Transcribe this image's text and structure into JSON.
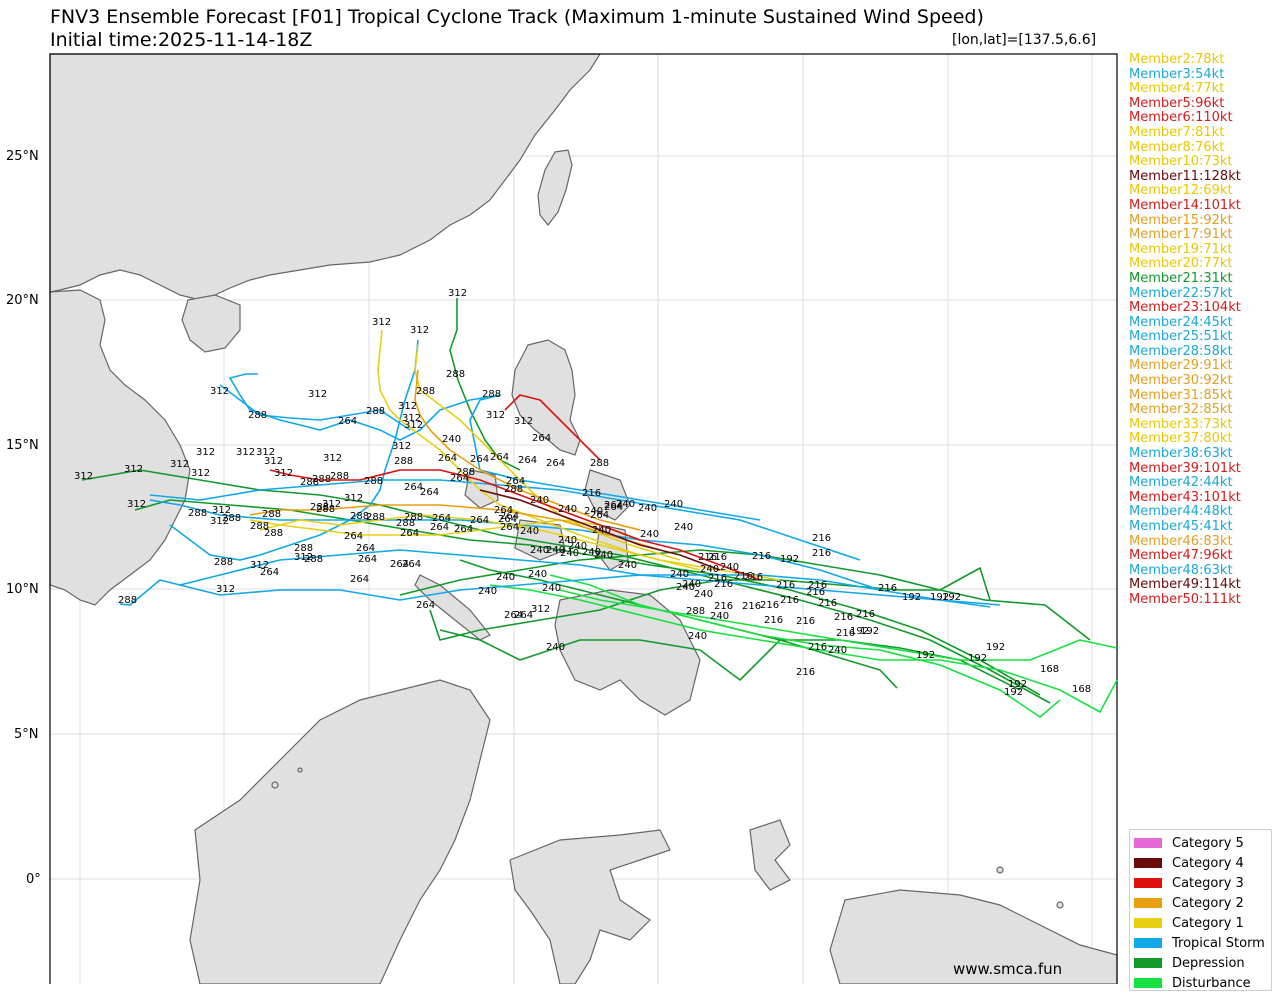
{
  "title": "FNV3 Ensemble Forecast [F01] Tropical Cyclone Track (Maximum 1-minute Sustained Wind Speed)",
  "initial_time": "Initial time:2025-11-14-18Z",
  "coord_label": "[lon,lat]=[137.5,6.6]",
  "credit": "www.smca.fun",
  "lat_labels": [
    "25°N",
    "20°N",
    "15°N",
    "10°N",
    "5°N",
    "0°"
  ],
  "members": [
    {
      "label": "Member2:78kt",
      "color": "#e8c800"
    },
    {
      "label": "Member3:54kt",
      "color": "#1aa8d8"
    },
    {
      "label": "Member4:77kt",
      "color": "#e8c800"
    },
    {
      "label": "Member5:96kt",
      "color": "#d41c1c"
    },
    {
      "label": "Member6:110kt",
      "color": "#d41c1c"
    },
    {
      "label": "Member7:81kt",
      "color": "#e8c800"
    },
    {
      "label": "Member8:76kt",
      "color": "#e8c800"
    },
    {
      "label": "Member10:73kt",
      "color": "#e8c800"
    },
    {
      "label": "Member11:128kt",
      "color": "#6b0a0a"
    },
    {
      "label": "Member12:69kt",
      "color": "#e8c800"
    },
    {
      "label": "Member14:101kt",
      "color": "#d41c1c"
    },
    {
      "label": "Member15:92kt",
      "color": "#e0a020"
    },
    {
      "label": "Member17:91kt",
      "color": "#e0a020"
    },
    {
      "label": "Member19:71kt",
      "color": "#e8c800"
    },
    {
      "label": "Member20:77kt",
      "color": "#e8c800"
    },
    {
      "label": "Member21:31kt",
      "color": "#119a2a"
    },
    {
      "label": "Member22:57kt",
      "color": "#1aa8d8"
    },
    {
      "label": "Member23:104kt",
      "color": "#d41c1c"
    },
    {
      "label": "Member24:45kt",
      "color": "#1aa8d8"
    },
    {
      "label": "Member25:51kt",
      "color": "#1aa8d8"
    },
    {
      "label": "Member28:58kt",
      "color": "#1aa8d8"
    },
    {
      "label": "Member29:91kt",
      "color": "#e0a020"
    },
    {
      "label": "Member30:92kt",
      "color": "#e0a020"
    },
    {
      "label": "Member31:85kt",
      "color": "#e0a020"
    },
    {
      "label": "Member32:85kt",
      "color": "#e0a020"
    },
    {
      "label": "Member33:73kt",
      "color": "#e8c800"
    },
    {
      "label": "Member37:80kt",
      "color": "#e8c800"
    },
    {
      "label": "Member38:63kt",
      "color": "#1aa8d8"
    },
    {
      "label": "Member39:101kt",
      "color": "#d41c1c"
    },
    {
      "label": "Member42:44kt",
      "color": "#1aa8d8"
    },
    {
      "label": "Member43:101kt",
      "color": "#d41c1c"
    },
    {
      "label": "Member44:48kt",
      "color": "#1aa8d8"
    },
    {
      "label": "Member45:41kt",
      "color": "#1aa8d8"
    },
    {
      "label": "Member46:83kt",
      "color": "#e0a020"
    },
    {
      "label": "Member47:96kt",
      "color": "#d41c1c"
    },
    {
      "label": "Member48:63kt",
      "color": "#1aa8d8"
    },
    {
      "label": "Member49:114kt",
      "color": "#6b0a0a"
    },
    {
      "label": "Member50:111kt",
      "color": "#d41c1c"
    }
  ],
  "legend": [
    {
      "label": "Category 5",
      "color": "#e868d8"
    },
    {
      "label": "Category 4",
      "color": "#6b0a0a"
    },
    {
      "label": "Category 3",
      "color": "#e01010"
    },
    {
      "label": "Category 2",
      "color": "#e8a010"
    },
    {
      "label": "Category 1",
      "color": "#e8d010"
    },
    {
      "label": "Tropical Storm",
      "color": "#10a8e8"
    },
    {
      "label": "Depression",
      "color": "#119a2a"
    },
    {
      "label": "Disturbance",
      "color": "#18e040"
    }
  ],
  "hour_labels": [
    "312",
    "288",
    "264",
    "240",
    "216",
    "192",
    "168"
  ]
}
